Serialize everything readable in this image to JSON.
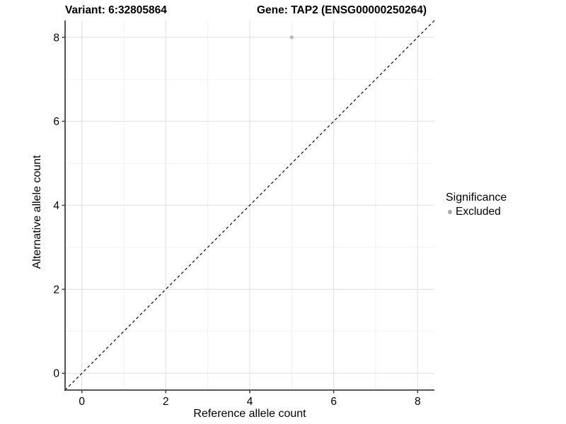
{
  "title": {
    "variant": "Variant: 6:32805864",
    "gene": "Gene: TAP2 (ENSG00000250264)"
  },
  "chart_data": {
    "type": "scatter",
    "title_left": "Variant: 6:32805864",
    "title_right": "Gene: TAP2 (ENSG00000250264)",
    "xlabel": "Reference allele count",
    "ylabel": "Alternative allele count",
    "xlim": [
      -0.4,
      8.4
    ],
    "ylim": [
      -0.4,
      8.4
    ],
    "x_major_ticks": [
      0,
      2,
      4,
      6,
      8
    ],
    "y_major_ticks": [
      0,
      2,
      4,
      6,
      8
    ],
    "x_minor_ticks": [
      1,
      3,
      5,
      7
    ],
    "y_minor_ticks": [
      1,
      3,
      5,
      7
    ],
    "grid": "on",
    "reference_line": {
      "type": "identity",
      "style": "dashed",
      "color": "#1a1a1a"
    },
    "series": [
      {
        "name": "Excluded",
        "color": "#b5b5b5",
        "points": [
          {
            "x": 5,
            "y": 8
          }
        ]
      }
    ],
    "legend": {
      "title": "Significance",
      "position": "right",
      "items": [
        {
          "label": "Excluded",
          "color": "#a8a8a8"
        }
      ]
    }
  },
  "style": {
    "grid_major_color": "#e4e4e4",
    "grid_minor_color": "#f1f1f1",
    "axis_line_color": "#404040",
    "tick_color": "#404040",
    "text_color": "#000000",
    "point_radius": 2.6
  }
}
